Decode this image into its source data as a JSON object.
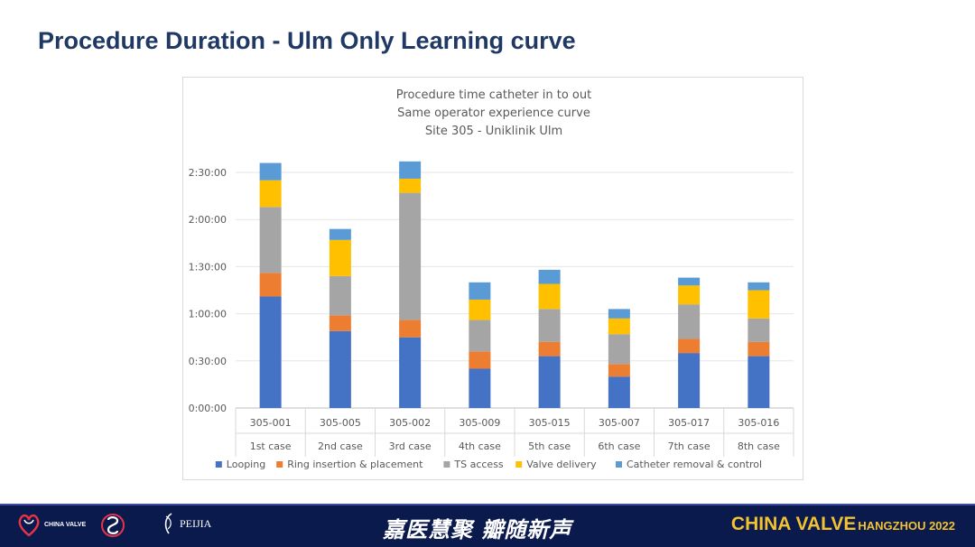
{
  "slide": {
    "title": "Procedure Duration -  Ulm Only Learning curve"
  },
  "chart_data": {
    "type": "bar",
    "stacked": true,
    "title_lines": [
      "Procedure time catheter in to out",
      "Same operator experience curve",
      "Site 305 - Uniklinik Ulm"
    ],
    "categories": [
      "305-001",
      "305-005",
      "305-002",
      "305-009",
      "305-015",
      "305-007",
      "305-017",
      "305-016"
    ],
    "category_sublabels": [
      "1st case",
      "2nd case",
      "3rd case",
      "4th case",
      "5th case",
      "6th case",
      "7th case",
      "8th case"
    ],
    "y_unit": "minutes",
    "ylim": [
      0,
      150
    ],
    "y_ticks": [
      0,
      30,
      60,
      90,
      120,
      150
    ],
    "y_tick_labels": [
      "0:00:00",
      "0:30:00",
      "1:00:00",
      "1:30:00",
      "2:00:00",
      "2:30:00"
    ],
    "grid": true,
    "legend_position": "bottom",
    "series": [
      {
        "name": "Looping",
        "color": "#4472c4",
        "values": [
          71,
          49,
          45,
          25,
          33,
          20,
          35,
          33
        ]
      },
      {
        "name": "Ring insertion & placement",
        "color": "#ed7d31",
        "values": [
          15,
          10,
          11,
          11,
          9,
          8,
          9,
          9
        ]
      },
      {
        "name": "TS access",
        "color": "#a5a5a5",
        "values": [
          42,
          25,
          81,
          20,
          21,
          19,
          22,
          15
        ]
      },
      {
        "name": "Valve delivery",
        "color": "#ffc000",
        "values": [
          17,
          23,
          9,
          13,
          16,
          10,
          12,
          18
        ]
      },
      {
        "name": "Catheter removal & control",
        "color": "#5b9bd5",
        "values": [
          11,
          7,
          11,
          11,
          9,
          6,
          5,
          5
        ]
      }
    ]
  },
  "footer": {
    "logo_cv": "CHINA VALVE",
    "logo_peijia": "PEIJIA",
    "slogan": "嘉医慧聚 瓣随新声",
    "brand_main": "CHINA VALVE",
    "brand_sub": "HANGZHOU 2022"
  }
}
